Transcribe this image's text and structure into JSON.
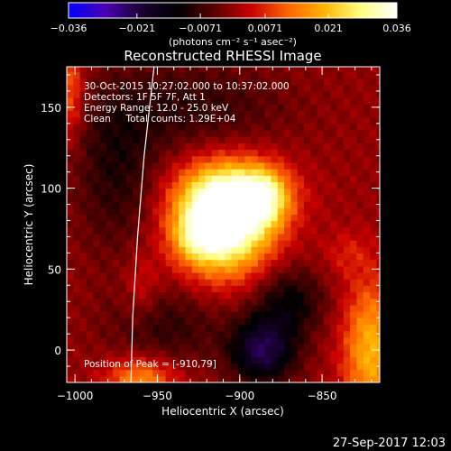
{
  "chart_data": {
    "type": "heatmap",
    "title": "Reconstructed RHESSI Image",
    "xlabel": "Heliocentric X (arcsec)",
    "ylabel": "Heliocentric Y (arcsec)",
    "xlim": [
      -1005,
      -815
    ],
    "ylim": [
      -20,
      175
    ],
    "x_ticks": [
      -1000,
      -950,
      -900,
      -850
    ],
    "x_tick_labels": [
      "−1000",
      "−950",
      "−900",
      "−850"
    ],
    "y_ticks": [
      0,
      50,
      100,
      150
    ],
    "y_tick_labels": [
      "0",
      "50",
      "100",
      "150"
    ],
    "colorbar": {
      "min": -0.036,
      "max": 0.036,
      "ticks": [
        -0.036,
        -0.021,
        -0.0071,
        0.0071,
        0.021,
        0.036
      ],
      "tick_labels": [
        "−0.036",
        "−0.021",
        "−0.0071",
        "0.0071",
        "0.021",
        "0.036"
      ],
      "units": "(photons cm⁻² s⁻¹ asec⁻²)",
      "colormap": [
        "#0000ff",
        "#4b00b3",
        "#1a0033",
        "#000000",
        "#5a0000",
        "#c80000",
        "#ff6400",
        "#ffb400",
        "#ffff80",
        "#ffffff"
      ]
    },
    "annotations": [
      "30-Oct-2015 10:27:02.000 to 10:37:02.000",
      "Detectors: 1F 5F 7F, Att 1",
      "Energy Range: 12.0 - 25.0 keV",
      "Clean     Total counts: 1.29E+04",
      "Position of Peak = [-910,79]"
    ],
    "peak": {
      "x": -910,
      "y": 79,
      "value": 0.036
    },
    "grid_cell_arcsec": 4,
    "blobs": [
      {
        "x": -910,
        "y": 80,
        "sx": 20,
        "sy": 22,
        "amp": 0.043
      },
      {
        "x": -900,
        "y": 96,
        "sx": 22,
        "sy": 14,
        "amp": 0.015
      },
      {
        "x": -885,
        "y": 95,
        "sx": 10,
        "sy": 12,
        "amp": 0.016
      },
      {
        "x": -925,
        "y": 70,
        "sx": 10,
        "sy": 10,
        "amp": 0.011
      },
      {
        "x": -820,
        "y": 0,
        "sx": 12,
        "sy": 30,
        "amp": 0.02
      },
      {
        "x": -960,
        "y": -18,
        "sx": 15,
        "sy": 10,
        "amp": 0.016
      },
      {
        "x": -1003,
        "y": 160,
        "sx": 6,
        "sy": 20,
        "amp": 0.012
      },
      {
        "x": -960,
        "y": 38,
        "sx": 8,
        "sy": 15,
        "amp": 0.006
      },
      {
        "x": -835,
        "y": 60,
        "sx": 10,
        "sy": 10,
        "amp": 0.005
      },
      {
        "x": -886,
        "y": 0,
        "sx": 14,
        "sy": 14,
        "amp": -0.021
      },
      {
        "x": -870,
        "y": 30,
        "sx": 15,
        "sy": 15,
        "amp": -0.012
      },
      {
        "x": -975,
        "y": 110,
        "sx": 18,
        "sy": 35,
        "amp": -0.009
      },
      {
        "x": -930,
        "y": 150,
        "sx": 40,
        "sy": 20,
        "amp": -0.008
      },
      {
        "x": -945,
        "y": 15,
        "sx": 25,
        "sy": 18,
        "amp": -0.008
      }
    ],
    "limb_curve": [
      [
        -952,
        175
      ],
      [
        -958,
        120
      ],
      [
        -962,
        70
      ],
      [
        -965,
        20
      ],
      [
        -966,
        -20
      ]
    ]
  },
  "footer": {
    "timestamp": "27-Sep-2017 12:03"
  }
}
